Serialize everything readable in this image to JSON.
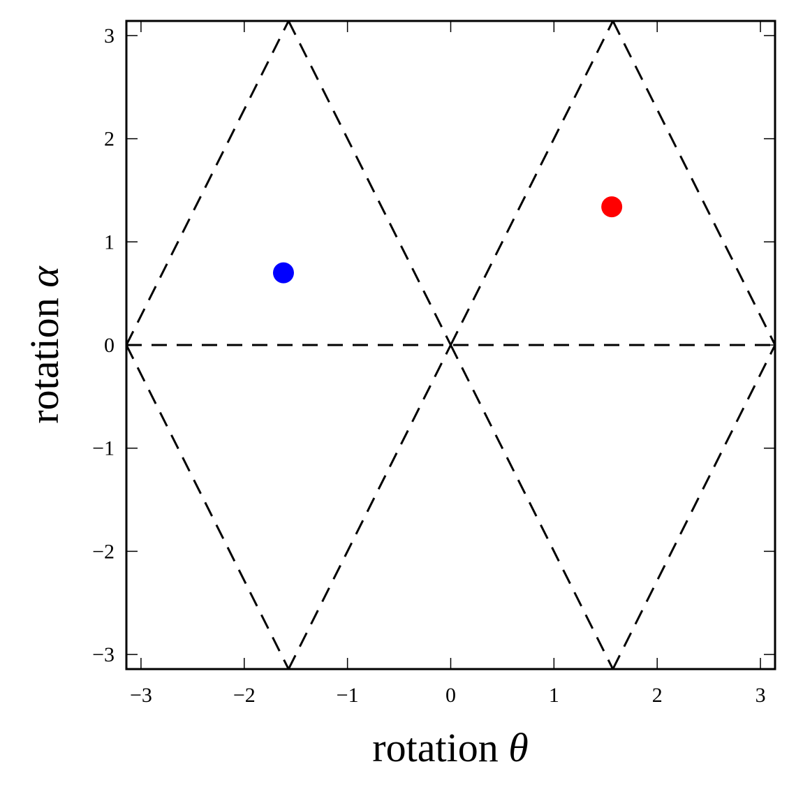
{
  "chart_data": {
    "type": "scatter",
    "title": "",
    "xlabel": "rotation",
    "xlabel_symbol": "θ",
    "ylabel": "rotation",
    "ylabel_symbol": "α",
    "xlim": [
      -3.14159,
      3.14159
    ],
    "ylim": [
      -3.14159,
      3.14159
    ],
    "grid": false,
    "legend": null,
    "xticks": [
      -3,
      -2,
      -1,
      0,
      1,
      2,
      3
    ],
    "yticks": [
      -3,
      -2,
      -1,
      0,
      1,
      2,
      3
    ],
    "xtick_labels": [
      "−3",
      "−2",
      "−1",
      "0",
      "1",
      "2",
      "3"
    ],
    "ytick_labels": [
      "−3",
      "−2",
      "−1",
      "0",
      "1",
      "2",
      "3"
    ],
    "series": [
      {
        "name": "blue point",
        "color": "#0000ff",
        "points": [
          {
            "x": -1.62,
            "y": 0.7
          }
        ]
      },
      {
        "name": "red point",
        "color": "#ff0000",
        "points": [
          {
            "x": 1.56,
            "y": 1.34
          }
        ]
      }
    ],
    "reference_lines": {
      "style": "dashed",
      "color": "#000000",
      "segments": [
        [
          [
            -3.14159,
            0
          ],
          [
            3.14159,
            0
          ]
        ],
        [
          [
            -3.14159,
            0
          ],
          [
            -1.5708,
            3.14159
          ]
        ],
        [
          [
            -1.5708,
            3.14159
          ],
          [
            0,
            0
          ]
        ],
        [
          [
            0,
            0
          ],
          [
            1.5708,
            3.14159
          ]
        ],
        [
          [
            1.5708,
            3.14159
          ],
          [
            3.14159,
            0
          ]
        ],
        [
          [
            -3.14159,
            0
          ],
          [
            -1.5708,
            -3.14159
          ]
        ],
        [
          [
            -1.5708,
            -3.14159
          ],
          [
            0,
            0
          ]
        ],
        [
          [
            0,
            0
          ],
          [
            1.5708,
            -3.14159
          ]
        ],
        [
          [
            1.5708,
            -3.14159
          ],
          [
            3.14159,
            0
          ]
        ]
      ]
    }
  }
}
